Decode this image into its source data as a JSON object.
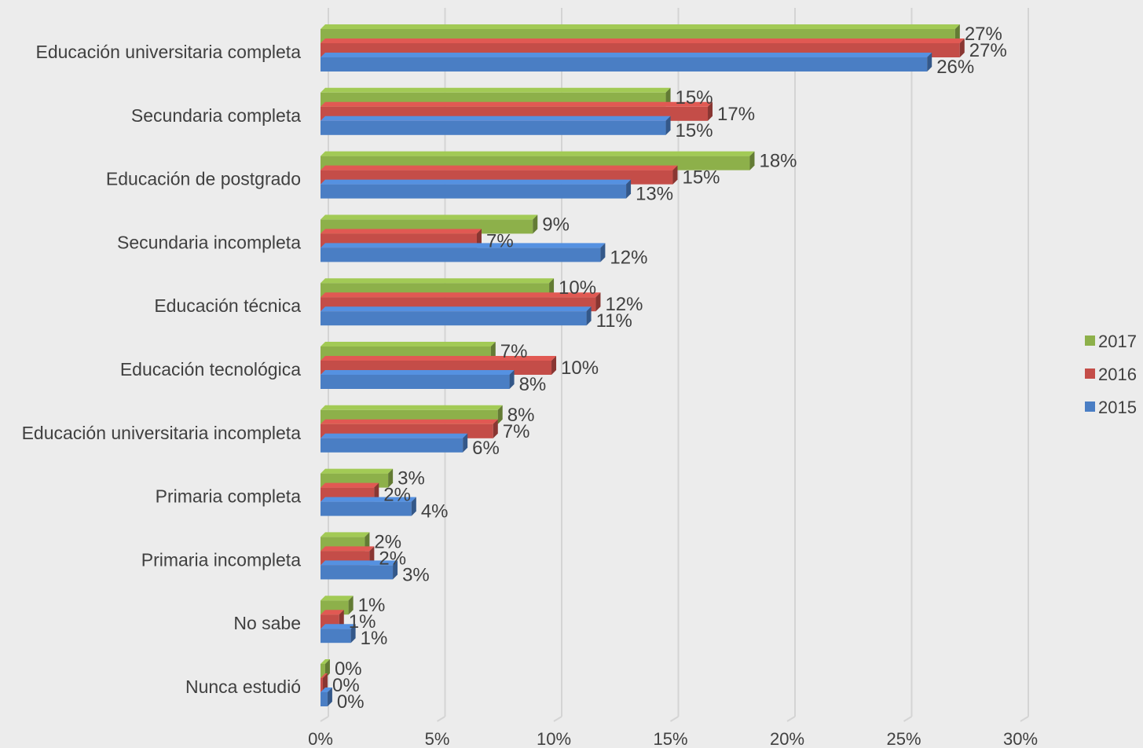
{
  "chart_data": {
    "type": "bar",
    "orientation": "horizontal",
    "style": "3d",
    "categories": [
      "Educación universitaria completa",
      "Secundaria completa",
      "Educación de postgrado",
      "Secundaria incompleta",
      "Educación técnica",
      "Educación tecnológica",
      "Educación universitaria incompleta",
      "Primaria completa",
      "Primaria incompleta",
      "No sabe",
      "Nunca estudió"
    ],
    "series": [
      {
        "name": "2017",
        "color": "#8db04a",
        "values": [
          27.2,
          14.8,
          18.4,
          9.1,
          9.8,
          7.3,
          7.6,
          2.9,
          1.9,
          1.2,
          0.2
        ],
        "labels": [
          "27%",
          "15%",
          "18%",
          "9%",
          "10%",
          "7%",
          "8%",
          "3%",
          "2%",
          "1%",
          "0%"
        ]
      },
      {
        "name": "2016",
        "color": "#c44d48",
        "values": [
          27.4,
          16.6,
          15.1,
          6.7,
          11.8,
          9.9,
          7.4,
          2.3,
          2.1,
          0.8,
          0.1
        ],
        "labels": [
          "27%",
          "17%",
          "15%",
          "7%",
          "12%",
          "10%",
          "7%",
          "2%",
          "2%",
          "1%",
          "0%"
        ]
      },
      {
        "name": "2015",
        "color": "#4a7ec4",
        "values": [
          26.0,
          14.8,
          13.1,
          12.0,
          11.4,
          8.1,
          6.1,
          3.9,
          3.1,
          1.3,
          0.3
        ],
        "labels": [
          "26%",
          "15%",
          "13%",
          "12%",
          "11%",
          "8%",
          "6%",
          "4%",
          "3%",
          "1%",
          "0%"
        ]
      }
    ],
    "x_ticks": [
      "0%",
      "5%",
      "10%",
      "15%",
      "20%",
      "25%",
      "30%"
    ],
    "xlim": [
      0,
      30
    ],
    "grid": true,
    "legend_position": "right"
  }
}
